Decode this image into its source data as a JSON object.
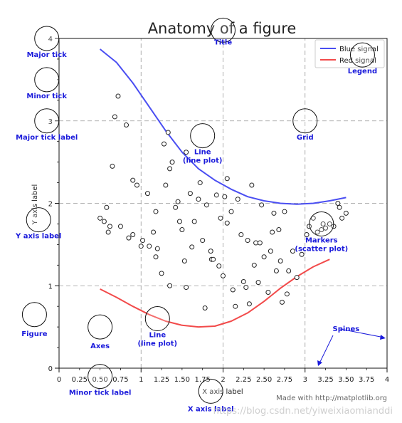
{
  "chart_data": {
    "type": "line",
    "title": "Anatomy of a figure",
    "xlabel": "X axis label",
    "ylabel": "Y axis label",
    "xlim": [
      0,
      4
    ],
    "ylim": [
      0,
      4
    ],
    "grid": true,
    "x_major_ticks": [
      "0",
      "1",
      "2",
      "3",
      "4"
    ],
    "x_minor_ticks": [
      "0.25",
      "0.50",
      "0.75",
      "1.25",
      "1.50",
      "1.75",
      "2.25",
      "2.50",
      "2.75",
      "3.25",
      "3.50",
      "3.75"
    ],
    "x_minor_values": [
      0.25,
      0.5,
      0.75,
      1.25,
      1.5,
      1.75,
      2.25,
      2.5,
      2.75,
      3.25,
      3.5,
      3.75
    ],
    "y_major_ticks": [
      "0",
      "1",
      "2",
      "3",
      "4"
    ],
    "legend": {
      "position": "top-right",
      "entries": [
        "Blue signal",
        "Red signal"
      ]
    },
    "series": [
      {
        "name": "Blue signal",
        "color": "#4a4ef2",
        "x": [
          0.5,
          0.7,
          0.9,
          1.1,
          1.3,
          1.5,
          1.7,
          1.9,
          2.1,
          2.3,
          2.5,
          2.7,
          2.9,
          3.1,
          3.3,
          3.5
        ],
        "y": [
          3.87,
          3.71,
          3.46,
          3.17,
          2.88,
          2.62,
          2.42,
          2.28,
          2.17,
          2.08,
          2.03,
          2.0,
          1.99,
          2.0,
          2.03,
          2.07
        ]
      },
      {
        "name": "Red signal",
        "color": "#f24a4a",
        "x": [
          0.5,
          0.7,
          0.9,
          1.1,
          1.3,
          1.5,
          1.7,
          1.9,
          2.1,
          2.3,
          2.5,
          2.7,
          2.9,
          3.1,
          3.3
        ],
        "y": [
          0.96,
          0.86,
          0.75,
          0.65,
          0.57,
          0.52,
          0.5,
          0.51,
          0.57,
          0.67,
          0.81,
          0.97,
          1.11,
          1.23,
          1.32
        ]
      }
    ],
    "scatter": {
      "name": "Markers",
      "x": [
        0.72,
        0.68,
        0.82,
        1.08,
        1.18,
        1.33,
        1.38,
        1.3,
        1.42,
        1.53,
        1.55,
        1.47,
        1.62,
        1.78,
        1.86,
        1.95,
        2.05,
        2.15,
        2.25,
        2.32,
        2.43,
        2.55,
        2.65,
        2.68,
        2.78,
        2.85,
        2.96,
        0.5,
        0.55,
        0.62,
        0.75,
        0.9,
        1.02,
        1.1,
        1.18,
        1.25,
        1.35,
        1.5,
        1.65,
        1.75,
        1.85,
        1.97,
        2.1,
        2.22,
        2.3,
        2.4,
        2.5,
        2.58,
        2.7,
        2.8,
        2.9,
        3.02,
        3.15,
        3.25,
        3.35,
        3.45,
        3.5,
        0.6,
        0.85,
        1.0,
        1.2,
        1.45,
        1.6,
        1.8,
        1.92,
        2.05,
        2.18,
        2.35,
        2.47,
        2.62,
        2.75,
        3.05,
        3.2,
        3.3,
        3.42,
        0.65,
        0.9,
        1.15,
        1.35,
        1.55,
        1.72,
        1.88,
        2.0,
        2.12,
        2.28,
        2.45,
        2.6,
        2.72,
        3.1,
        3.22,
        3.4,
        0.58,
        0.95,
        1.28,
        1.7,
        2.02,
        2.38
      ],
      "y": [
        3.3,
        3.05,
        2.95,
        2.12,
        1.9,
        2.86,
        2.5,
        2.22,
        1.95,
        1.3,
        0.98,
        1.78,
        1.47,
        0.73,
        1.32,
        1.24,
        1.76,
        0.75,
        1.05,
        0.78,
        1.04,
        0.92,
        1.18,
        1.68,
        0.9,
        1.42,
        1.38,
        1.82,
        1.78,
        1.72,
        1.72,
        1.62,
        1.55,
        1.48,
        1.35,
        1.15,
        1.0,
        1.68,
        1.78,
        1.55,
        1.42,
        1.82,
        1.9,
        1.62,
        1.55,
        1.52,
        1.35,
        1.42,
        1.3,
        1.18,
        1.1,
        1.62,
        1.65,
        1.7,
        1.72,
        1.82,
        1.88,
        1.65,
        1.58,
        1.48,
        1.45,
        2.02,
        2.12,
        1.98,
        2.1,
        2.3,
        2.05,
        2.22,
        1.98,
        1.88,
        1.9,
        1.72,
        1.68,
        1.75,
        1.95,
        2.45,
        2.28,
        1.65,
        2.42,
        2.62,
        2.25,
        1.32,
        1.12,
        0.95,
        0.98,
        1.52,
        1.65,
        0.8,
        1.82,
        1.75,
        2.0,
        1.95,
        2.22,
        2.72,
        2.05,
        2.08,
        1.25
      ]
    },
    "annotations": [
      {
        "label": "Title",
        "cx": 2.0,
        "cy": 4.1
      },
      {
        "label": "Major tick",
        "cx": -0.15,
        "cy": 4.0
      },
      {
        "label": "Minor tick",
        "cx": -0.15,
        "cy": 3.5
      },
      {
        "label": "Major tick label",
        "cx": -0.15,
        "cy": 3.0
      },
      {
        "label": "Grid",
        "cx": 3.0,
        "cy": 3.0
      },
      {
        "label": "Legend",
        "cx": 3.7,
        "cy": 3.8
      },
      {
        "label": "Line\n(line plot)",
        "cx": 1.75,
        "cy": 2.82
      },
      {
        "label": "Y axis label",
        "cx": -0.25,
        "cy": 1.8
      },
      {
        "label": "Markers\n(scatter plot)",
        "cx": 3.2,
        "cy": 1.75
      },
      {
        "label": "Figure",
        "cx": -0.3,
        "cy": 0.65
      },
      {
        "label": "Axes",
        "cx": 0.5,
        "cy": 0.5
      },
      {
        "label": "Line\n(line plot)",
        "cx": 1.2,
        "cy": 0.6
      },
      {
        "label": "Spines",
        "cx": 3.5,
        "cy": 0.45
      },
      {
        "label": "Minor tick label",
        "cx": 0.5,
        "cy": -0.1
      },
      {
        "label": "X axis label",
        "cx": 1.85,
        "cy": -0.28
      }
    ]
  },
  "credit": "Made with http://matplotlib.org",
  "watermark": "https://blog.csdn.net/yiweixiaomianddi"
}
